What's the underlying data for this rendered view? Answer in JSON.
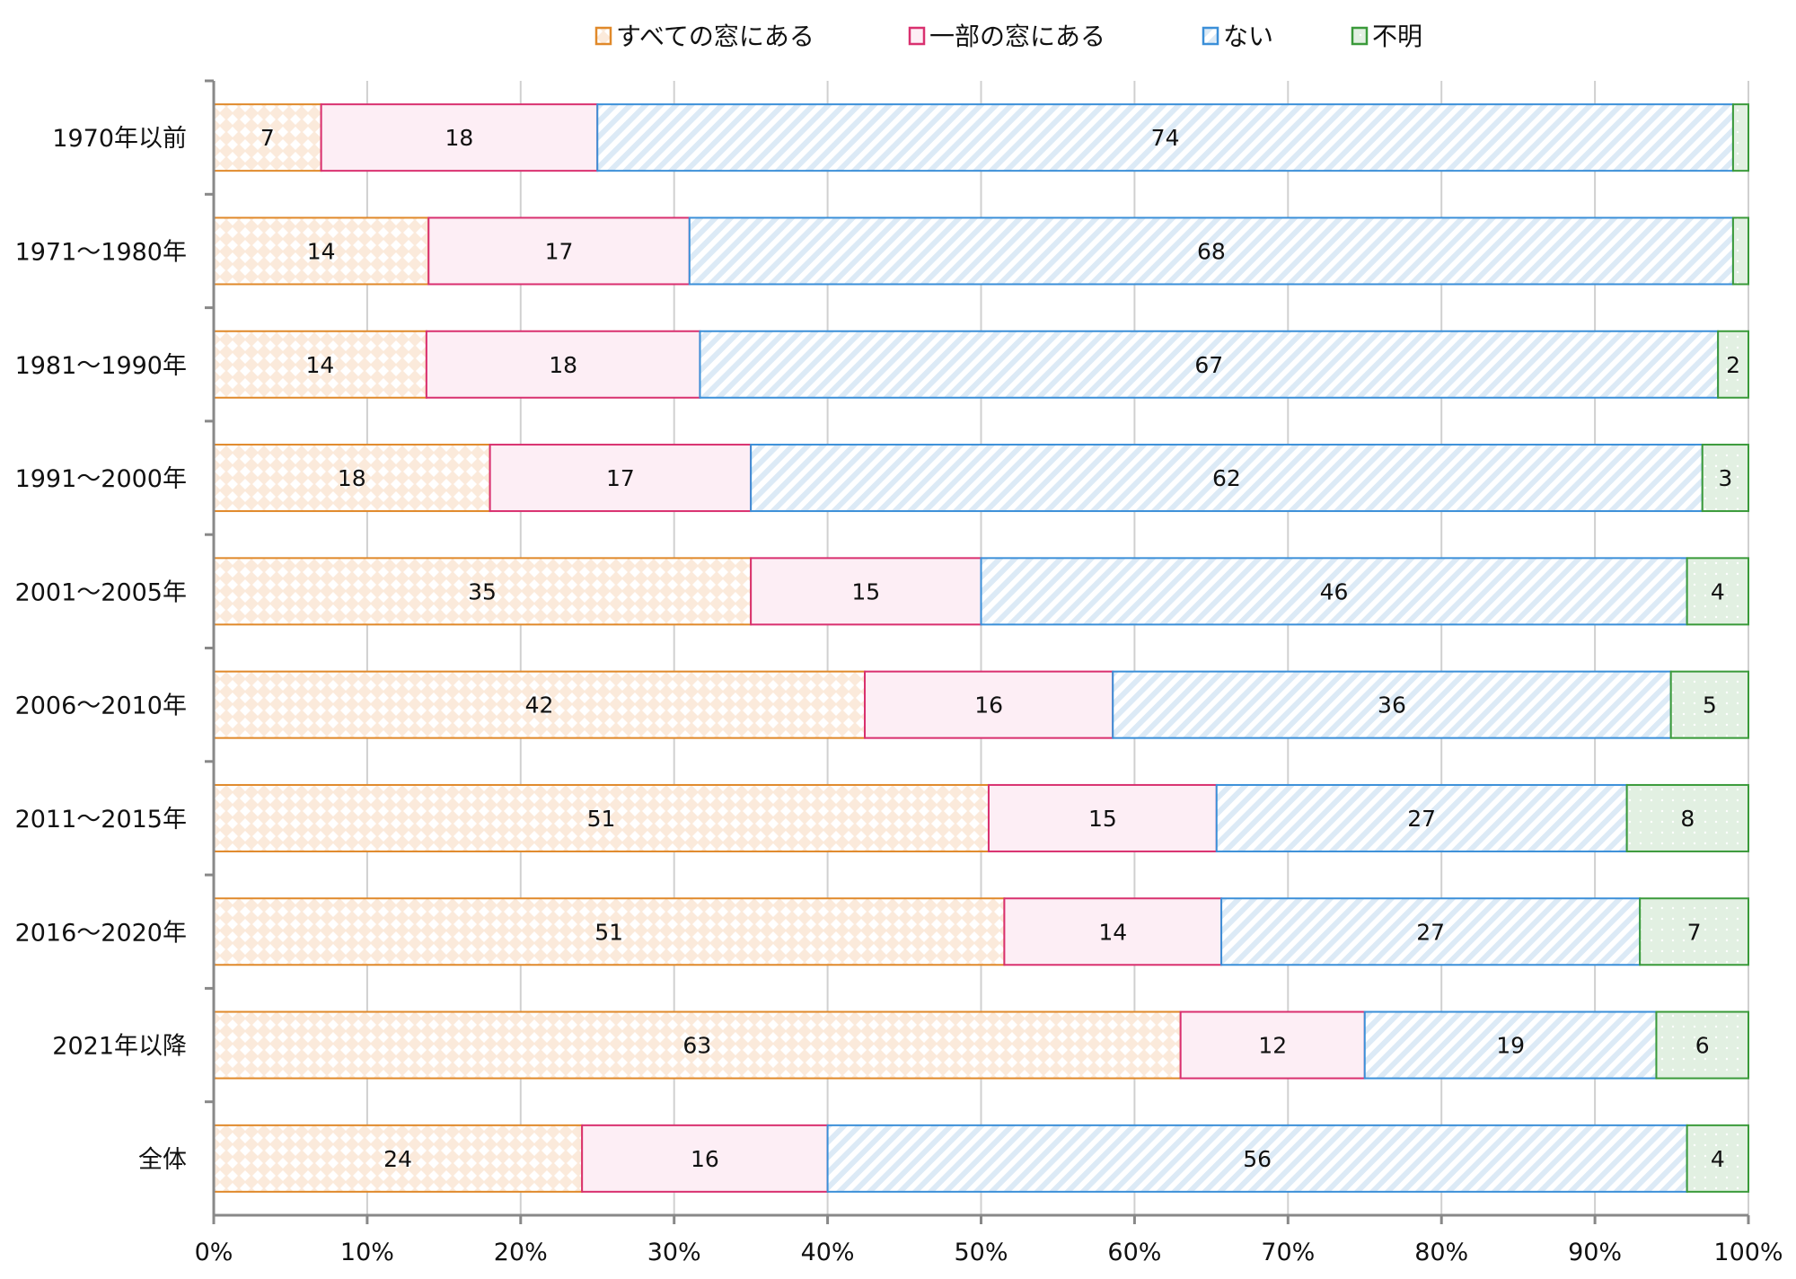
{
  "chart_data": {
    "type": "bar",
    "orientation": "horizontal",
    "stacked": "percent",
    "title": "",
    "xlabel": "",
    "ylabel": "",
    "xlim": [
      0,
      100
    ],
    "x_ticks": [
      "0%",
      "10%",
      "20%",
      "30%",
      "40%",
      "50%",
      "60%",
      "70%",
      "80%",
      "90%",
      "100%"
    ],
    "grid": true,
    "legend_position": "top",
    "categories": [
      "1970年以前",
      "1971～1980年",
      "1981～1990年",
      "1991～2000年",
      "2001～2005年",
      "2006～2010年",
      "2011～2015年",
      "2016～2020年",
      "2021年以降",
      "全体"
    ],
    "series": [
      {
        "name": "すべての窓にある",
        "color": "#e0892a",
        "fill": "#fbeadb",
        "pattern": "diamond",
        "values": [
          7,
          14,
          14,
          18,
          35,
          42,
          51,
          51,
          63,
          24
        ]
      },
      {
        "name": "一部の窓にある",
        "color": "#d9306f",
        "fill": "#fdeef5",
        "pattern": "solid",
        "values": [
          18,
          17,
          18,
          17,
          15,
          16,
          15,
          14,
          12,
          16
        ]
      },
      {
        "name": "ない",
        "color": "#3b8fd8",
        "fill": "#dceaf6",
        "pattern": "stripe",
        "values": [
          74,
          68,
          67,
          62,
          46,
          36,
          27,
          27,
          19,
          56
        ]
      },
      {
        "name": "不明",
        "color": "#3a9a3a",
        "fill": "#e2f0e2",
        "pattern": "dots",
        "values": [
          1,
          1,
          2,
          3,
          4,
          5,
          8,
          7,
          6,
          4
        ]
      }
    ]
  }
}
